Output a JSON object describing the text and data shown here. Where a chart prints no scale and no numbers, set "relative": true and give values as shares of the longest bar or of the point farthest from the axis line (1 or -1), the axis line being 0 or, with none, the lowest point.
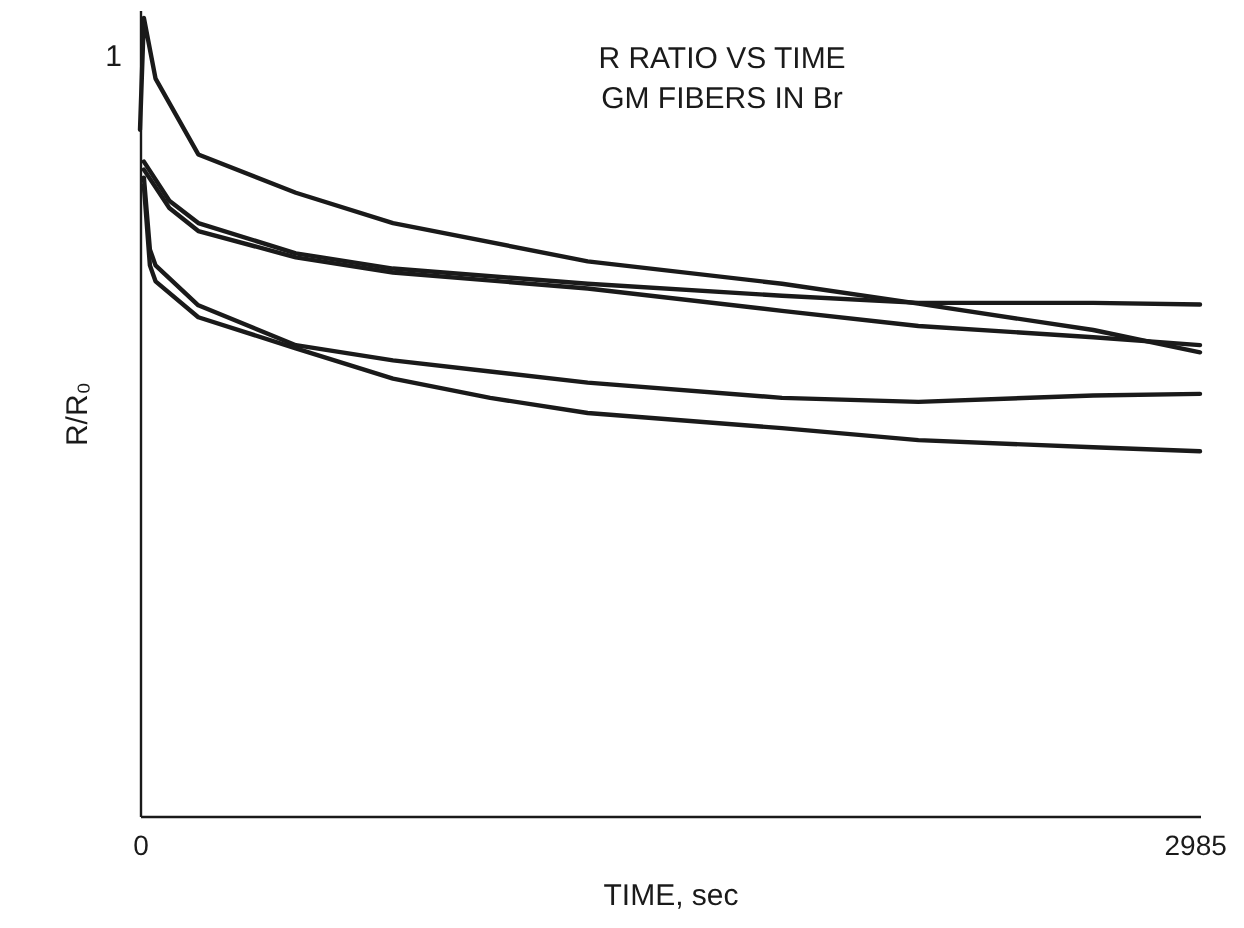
{
  "chart_data": {
    "type": "line",
    "title": "R RATIO VS TIME\nGM FIBERS IN Br",
    "xlabel": "TIME, sec",
    "ylabel": "R/R₀",
    "annotations": [
      "1"
    ],
    "relative": true,
    "xlim": [
      0,
      3000
    ],
    "xticks": [
      0,
      2985
    ],
    "grid": false,
    "legend": false,
    "marker": "none",
    "line_style": "solid",
    "series": [
      {
        "color": "#1a1a1a",
        "x": [
          0,
          11,
          44,
          165,
          441,
          716,
          1267,
          1817,
          2203,
          2698,
          3000
        ],
        "values": [
          0.86,
          1,
          0.924,
          0.829,
          0.781,
          0.743,
          0.695,
          0.667,
          0.642,
          0.609,
          0.581
        ]
      },
      {
        "color": "#1a1a1a",
        "x": [
          11,
          83,
          165,
          441,
          716,
          1267,
          1817,
          2203,
          2698,
          3000
        ],
        "values": [
          0.82,
          0.771,
          0.743,
          0.705,
          0.686,
          0.667,
          0.652,
          0.643,
          0.643,
          0.641
        ]
      },
      {
        "color": "#1a1a1a",
        "x": [
          11,
          83,
          165,
          441,
          716,
          1267,
          1817,
          2203,
          2698,
          3000
        ],
        "values": [
          0.81,
          0.762,
          0.733,
          0.7,
          0.681,
          0.661,
          0.633,
          0.614,
          0.6,
          0.59
        ]
      },
      {
        "color": "#1a1a1a",
        "x": [
          11,
          28,
          44,
          165,
          441,
          716,
          991,
          1267,
          1817,
          2203,
          2698,
          3000
        ],
        "values": [
          0.8,
          0.71,
          0.69,
          0.64,
          0.59,
          0.571,
          0.557,
          0.543,
          0.524,
          0.519,
          0.527,
          0.529
        ]
      },
      {
        "color": "#1a1a1a",
        "x": [
          11,
          28,
          44,
          165,
          441,
          716,
          991,
          1267,
          1817,
          2203,
          2698,
          3000
        ],
        "values": [
          0.79,
          0.69,
          0.67,
          0.625,
          0.586,
          0.548,
          0.524,
          0.505,
          0.486,
          0.471,
          0.462,
          0.457
        ]
      }
    ]
  }
}
